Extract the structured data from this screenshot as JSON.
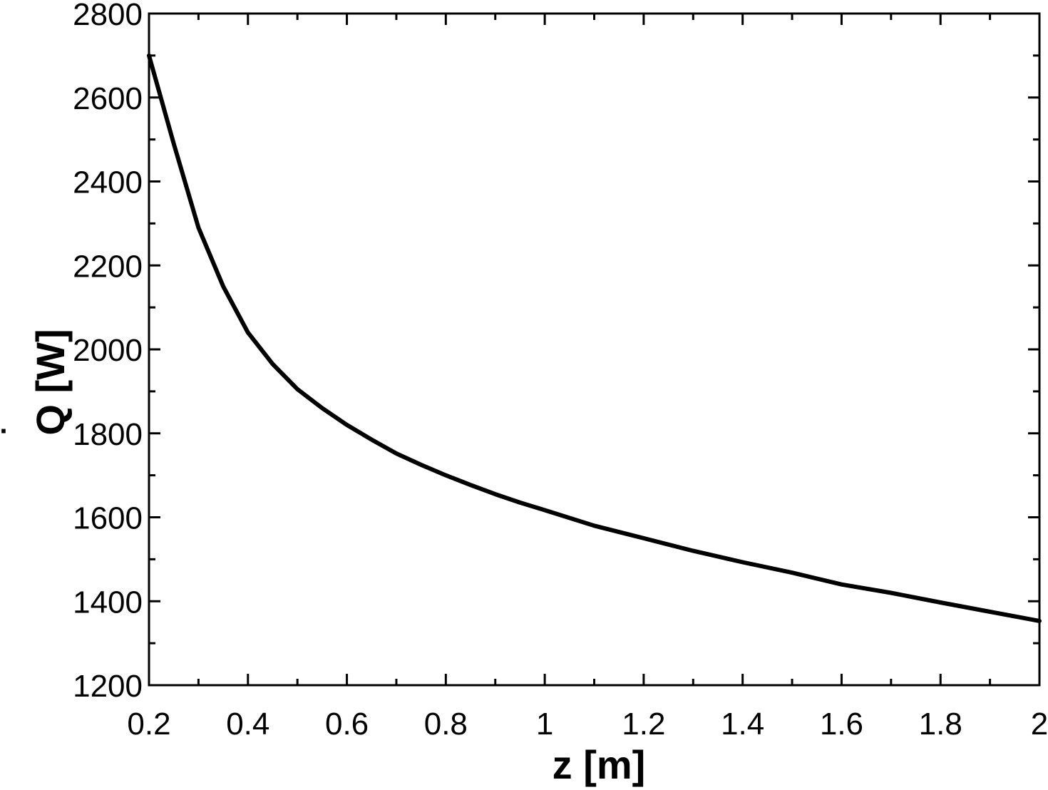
{
  "chart_data": {
    "type": "line",
    "title": "",
    "xlabel": "z  [m]",
    "ylabel": "Q [W]",
    "ylabel_dot": "·",
    "xlim": [
      0.2,
      2.0
    ],
    "ylim": [
      1200,
      2800
    ],
    "xticks": [
      0.2,
      0.4,
      0.6,
      0.8,
      1.0,
      1.2,
      1.4,
      1.6,
      1.8,
      2.0
    ],
    "xtick_labels": [
      "0.2",
      "0.4",
      "0.6",
      "0.8",
      "1",
      "1.2",
      "1.4",
      "1.6",
      "1.8",
      "2"
    ],
    "yticks": [
      1200,
      1400,
      1600,
      1800,
      2000,
      2200,
      2400,
      2600,
      2800
    ],
    "ytick_labels": [
      "1200",
      "1400",
      "1600",
      "1800",
      "2000",
      "2200",
      "2400",
      "2600",
      "2800"
    ],
    "grid": false,
    "legend": false,
    "line_color": "#000000",
    "series": [
      {
        "x": [
          0.2,
          0.25,
          0.3,
          0.35,
          0.4,
          0.45,
          0.5,
          0.55,
          0.6,
          0.65,
          0.7,
          0.75,
          0.8,
          0.85,
          0.9,
          0.95,
          1.0,
          1.1,
          1.2,
          1.3,
          1.4,
          1.5,
          1.6,
          1.7,
          1.8,
          1.9,
          2.0
        ],
        "y": [
          2700,
          2490,
          2290,
          2150,
          2040,
          1965,
          1905,
          1860,
          1820,
          1785,
          1752,
          1725,
          1700,
          1677,
          1655,
          1635,
          1617,
          1580,
          1550,
          1520,
          1493,
          1468,
          1440,
          1420,
          1397,
          1375,
          1353
        ]
      }
    ]
  }
}
